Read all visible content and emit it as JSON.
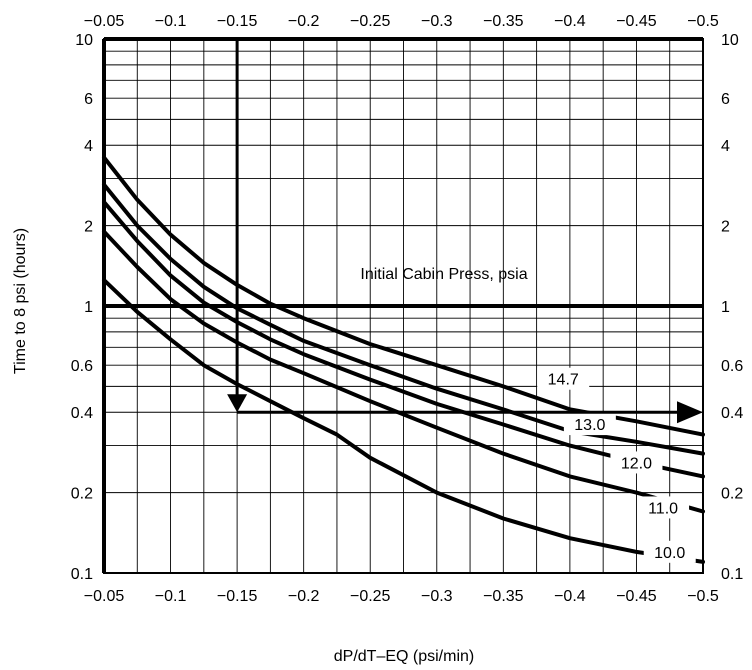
{
  "chart_data": {
    "type": "line",
    "title": "",
    "xlabel": "dP/dT–EQ (psi/min)",
    "ylabel": "Time to 8 psi (hours)",
    "x_scale": "linear",
    "y_scale": "log",
    "xlim": [
      -0.05,
      -0.5
    ],
    "ylim": [
      0.1,
      10
    ],
    "x_ticks": [
      -0.05,
      -0.1,
      -0.15,
      -0.2,
      -0.25,
      -0.3,
      -0.35,
      -0.4,
      -0.45,
      -0.5
    ],
    "x_tick_labels": [
      "−0.05",
      "−0.1",
      "−0.15",
      "−0.2",
      "−0.25",
      "−0.3",
      "−0.35",
      "−0.4",
      "−0.45",
      "−0.5"
    ],
    "y_tick_labels_left": [
      {
        "value": 10,
        "label": "10"
      },
      {
        "value": 6,
        "label": "6"
      },
      {
        "value": 4,
        "label": "4"
      },
      {
        "value": 2,
        "label": "2"
      },
      {
        "value": 1,
        "label": "1"
      },
      {
        "value": 0.6,
        "label": "0.6"
      },
      {
        "value": 0.4,
        "label": "0.4"
      },
      {
        "value": 0.2,
        "label": "0.2"
      },
      {
        "value": 0.1,
        "label": "0.1"
      }
    ],
    "y_tick_labels_right": [
      {
        "value": 10,
        "label": "10"
      },
      {
        "value": 6,
        "label": "6"
      },
      {
        "value": 4,
        "label": "4"
      },
      {
        "value": 2,
        "label": "2"
      },
      {
        "value": 1,
        "label": "1"
      },
      {
        "value": 0.6,
        "label": "0.6"
      },
      {
        "value": 0.4,
        "label": "0.4"
      },
      {
        "value": 0.2,
        "label": "0.2"
      },
      {
        "value": 0.1,
        "label": "0.1"
      }
    ],
    "y_gridlines": [
      0.1,
      0.2,
      0.3,
      0.4,
      0.5,
      0.6,
      0.7,
      0.8,
      0.9,
      1,
      2,
      3,
      4,
      5,
      6,
      7,
      8,
      9,
      10
    ],
    "grid": true,
    "legend_title": "Initial Cabin Press, psia",
    "series": [
      {
        "name": "14.7",
        "points": [
          [
            -0.05,
            3.6
          ],
          [
            -0.075,
            2.5
          ],
          [
            -0.1,
            1.85
          ],
          [
            -0.125,
            1.45
          ],
          [
            -0.15,
            1.2
          ],
          [
            -0.175,
            1.02
          ],
          [
            -0.2,
            0.9
          ],
          [
            -0.25,
            0.72
          ],
          [
            -0.3,
            0.6
          ],
          [
            -0.35,
            0.5
          ],
          [
            -0.4,
            0.41
          ],
          [
            -0.45,
            0.37
          ],
          [
            -0.5,
            0.33
          ]
        ]
      },
      {
        "name": "13.0",
        "points": [
          [
            -0.05,
            2.85
          ],
          [
            -0.075,
            2.0
          ],
          [
            -0.1,
            1.5
          ],
          [
            -0.125,
            1.18
          ],
          [
            -0.15,
            0.98
          ],
          [
            -0.175,
            0.85
          ],
          [
            -0.2,
            0.74
          ],
          [
            -0.25,
            0.6
          ],
          [
            -0.3,
            0.49
          ],
          [
            -0.35,
            0.41
          ],
          [
            -0.4,
            0.34
          ],
          [
            -0.45,
            0.31
          ],
          [
            -0.5,
            0.28
          ]
        ]
      },
      {
        "name": "12.0",
        "points": [
          [
            -0.05,
            2.45
          ],
          [
            -0.075,
            1.75
          ],
          [
            -0.1,
            1.3
          ],
          [
            -0.125,
            1.03
          ],
          [
            -0.15,
            0.87
          ],
          [
            -0.175,
            0.75
          ],
          [
            -0.2,
            0.66
          ],
          [
            -0.25,
            0.53
          ],
          [
            -0.3,
            0.43
          ],
          [
            -0.35,
            0.36
          ],
          [
            -0.4,
            0.3
          ],
          [
            -0.45,
            0.26
          ],
          [
            -0.5,
            0.23
          ]
        ]
      },
      {
        "name": "11.0",
        "points": [
          [
            -0.05,
            1.9
          ],
          [
            -0.075,
            1.4
          ],
          [
            -0.1,
            1.06
          ],
          [
            -0.125,
            0.86
          ],
          [
            -0.15,
            0.73
          ],
          [
            -0.175,
            0.63
          ],
          [
            -0.2,
            0.56
          ],
          [
            -0.25,
            0.44
          ],
          [
            -0.3,
            0.35
          ],
          [
            -0.35,
            0.28
          ],
          [
            -0.4,
            0.23
          ],
          [
            -0.45,
            0.2
          ],
          [
            -0.5,
            0.17
          ]
        ]
      },
      {
        "name": "10.0",
        "points": [
          [
            -0.05,
            1.25
          ],
          [
            -0.075,
            0.95
          ],
          [
            -0.1,
            0.75
          ],
          [
            -0.125,
            0.6
          ],
          [
            -0.15,
            0.51
          ],
          [
            -0.175,
            0.44
          ],
          [
            -0.2,
            0.38
          ],
          [
            -0.225,
            0.33
          ],
          [
            -0.25,
            0.27
          ],
          [
            -0.3,
            0.2
          ],
          [
            -0.35,
            0.16
          ],
          [
            -0.4,
            0.135
          ],
          [
            -0.45,
            0.12
          ],
          [
            -0.5,
            0.11
          ]
        ]
      }
    ],
    "reference_lines": {
      "horizontal_y": [
        10,
        1
      ],
      "vertical_x": [
        -0.05
      ]
    },
    "example_path": {
      "x": -0.15,
      "from_y": 10,
      "to_y": 0.4,
      "arrow_to_x": -0.5
    }
  }
}
